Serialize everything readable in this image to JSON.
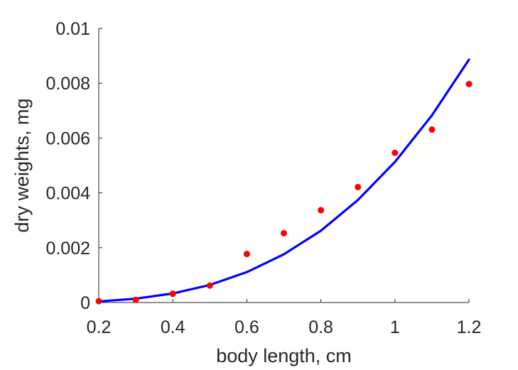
{
  "chart_data": {
    "type": "scatter",
    "xlabel": "body length, cm",
    "ylabel": "dry weights, mg",
    "xlim": [
      0.2,
      1.2
    ],
    "ylim": [
      0,
      0.01
    ],
    "x_ticks": [
      0.2,
      0.4,
      0.6,
      0.8,
      1.0,
      1.2
    ],
    "x_tick_labels": [
      "0.2",
      "0.4",
      "0.6",
      "0.8",
      "1",
      "1.2"
    ],
    "y_ticks": [
      0,
      0.002,
      0.004,
      0.006,
      0.008,
      0.01
    ],
    "y_tick_labels": [
      "0",
      "0.002",
      "0.004",
      "0.006",
      "0.008",
      "0.01"
    ],
    "grid": false,
    "series": [
      {
        "kind": "scatter",
        "color": "#ff0000",
        "x": [
          0.2,
          0.3,
          0.4,
          0.5,
          0.6,
          0.7,
          0.8,
          0.9,
          1.0,
          1.1,
          1.2
        ],
        "y": [
          5e-05,
          0.0001,
          0.00032,
          0.00062,
          0.00177,
          0.00253,
          0.00337,
          0.00421,
          0.00546,
          0.00631,
          0.00797
        ]
      },
      {
        "kind": "line",
        "color": "#0000ff",
        "x": [
          0.2,
          0.3,
          0.4,
          0.5,
          0.6,
          0.7,
          0.8,
          0.9,
          1.0,
          1.1,
          1.2
        ],
        "y": [
          4e-05,
          0.00014,
          0.00033,
          0.00064,
          0.00111,
          0.00176,
          0.00262,
          0.00374,
          0.00513,
          0.00683,
          0.00886
        ]
      }
    ]
  }
}
